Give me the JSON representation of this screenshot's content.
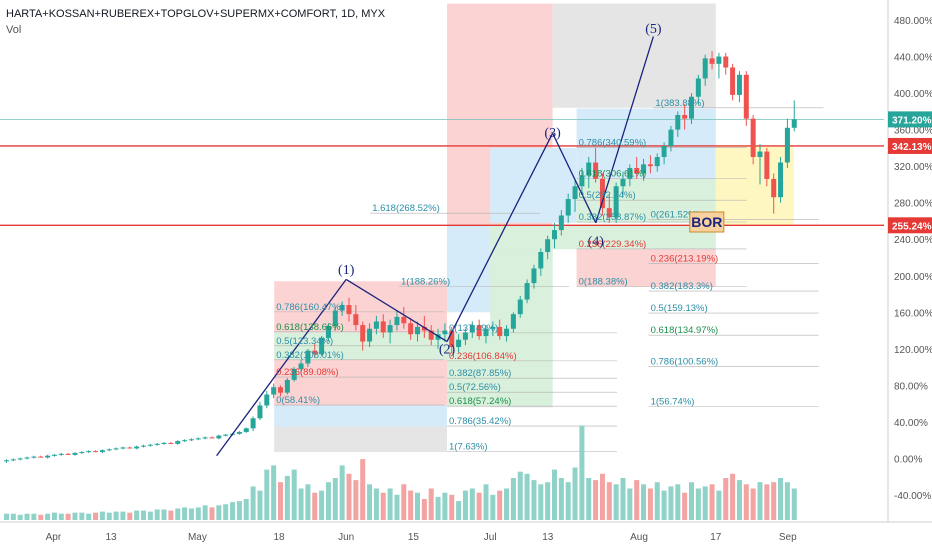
{
  "header": {
    "title": "HARTA+KOSSAN+RUBEREX+TOPGLOV+SUPERMX+COMFORT, 1D, MYX",
    "volume_label": "Vol"
  },
  "colors": {
    "up": "#26a69a",
    "down": "#ef5350",
    "vol_up": "#8fd2c8",
    "vol_down": "#f4a3a3",
    "fib": "#2b8ea6",
    "fib_red": "#e53935",
    "fib_green": "#1b8f4a",
    "wave": "#1a237e",
    "hline": "#e53935",
    "pink": "#fbd3d3",
    "blue": "#d6ebfa",
    "gray": "#e5e5e5",
    "green": "#d9f0dc",
    "yellow": "#fff7c2"
  },
  "chart_data": {
    "type": "candlestick",
    "title": "HARTA+KOSSAN+RUBEREX+TOPGLOV+SUPERMX+COMFORT, 1D, MYX",
    "yaxis": {
      "unit": "%",
      "ticks": [
        "480.00%",
        "440.00%",
        "400.00%",
        "360.00%",
        "320.00%",
        "280.00%",
        "240.00%",
        "200.00%",
        "160.00%",
        "120.00%",
        "80.00%",
        "40.00%",
        "0.00%",
        "-40.00%"
      ],
      "ylim": [
        -45,
        498
      ]
    },
    "xaxis": {
      "ticks": [
        "Apr",
        "13",
        "May",
        "18",
        "Jun",
        "15",
        "Jul",
        "13",
        "Aug",
        "17",
        "Sep"
      ]
    },
    "price_labels": [
      {
        "text": "371.20%",
        "value": 371.2,
        "kind": "current"
      },
      {
        "text": "342.13%",
        "value": 342.13,
        "kind": "line"
      },
      {
        "text": "255.24%",
        "value": 255.24,
        "kind": "line"
      }
    ],
    "horizontal_lines": [
      342.13,
      255.24
    ],
    "wave_labels": [
      {
        "text": "(1)",
        "x": "Jun 1",
        "y": 202
      },
      {
        "text": "(2)",
        "x": "Jun 22",
        "y": 115
      },
      {
        "text": "(3)",
        "x": "Jul 14",
        "y": 352
      },
      {
        "text": "(4)",
        "x": "Jul 23",
        "y": 233
      },
      {
        "text": "(5)",
        "x": "Aug 4",
        "y": 466
      }
    ],
    "fib_labels": [
      {
        "text": "1(383.88%)",
        "x": "Aug 4",
        "y": 383.88
      },
      {
        "text": "0.786(340.59%)",
        "x": "Jul 19",
        "y": 340.59
      },
      {
        "text": "0.618(306.61%)",
        "x": "Jul 19",
        "y": 306.61
      },
      {
        "text": "0.5(282.74%)",
        "x": "Jul 19",
        "y": 282.74
      },
      {
        "text": "0.382(258.87%)",
        "x": "Jul 19",
        "y": 258.87
      },
      {
        "text": "0.236(229.34%)",
        "x": "Jul 19",
        "y": 229.34
      },
      {
        "text": "0(188.38%)",
        "x": "Jul 19",
        "y": 188.38
      },
      {
        "text": "1.618(268.52%)",
        "x": "Jun 6",
        "y": 268.52
      },
      {
        "text": "1(188.26%)",
        "x": "Jun 12",
        "y": 188.26
      },
      {
        "text": "0.786(160.47%)",
        "x": "May 17",
        "y": 160.47
      },
      {
        "text": "0.618(138.66%)",
        "x": "May 17",
        "y": 138.66
      },
      {
        "text": "0.5(123.34%)",
        "x": "May 17",
        "y": 123.34
      },
      {
        "text": "0.382(108.01%)",
        "x": "May 17",
        "y": 108.01
      },
      {
        "text": "0.236(89.08%)",
        "x": "May 17",
        "y": 89.08
      },
      {
        "text": "0(58.41%)",
        "x": "May 17",
        "y": 58.41
      },
      {
        "text": "0.786(35.42%)",
        "x": "Jun 22",
        "y": 35.42
      },
      {
        "text": "1(7.63%)",
        "x": "Jun 22",
        "y": 7.63
      },
      {
        "text": "0(137.49%)",
        "x": "Jun 22",
        "y": 137.49
      },
      {
        "text": "0.236(106.84%)",
        "x": "Jun 22",
        "y": 106.84
      },
      {
        "text": "0.382(87.85%)",
        "x": "Jun 22",
        "y": 87.85
      },
      {
        "text": "0.5(72.56%)",
        "x": "Jun 22",
        "y": 72.56
      },
      {
        "text": "0.618(57.24%)",
        "x": "Jun 22",
        "y": 57.24
      },
      {
        "text": "0(261.52%)",
        "x": "Aug 3",
        "y": 261.52
      },
      {
        "text": "0.236(213.19%)",
        "x": "Aug 3",
        "y": 213.19
      },
      {
        "text": "0.382(183.3%)",
        "x": "Aug 3",
        "y": 183.3
      },
      {
        "text": "0.5(159.13%)",
        "x": "Aug 3",
        "y": 159.13
      },
      {
        "text": "0.618(134.97%)",
        "x": "Aug 3",
        "y": 134.97
      },
      {
        "text": "0.786(100.56%)",
        "x": "Aug 3",
        "y": 100.56
      },
      {
        "text": "1(56.74%)",
        "x": "Aug 3",
        "y": 56.74
      }
    ],
    "annotation": "BOR",
    "candles": [
      {
        "o": -3,
        "h": -1,
        "l": -5,
        "c": -2
      },
      {
        "o": -2,
        "h": 0,
        "l": -3,
        "c": -1
      },
      {
        "o": -1,
        "h": 1,
        "l": -2,
        "c": 0
      },
      {
        "o": 0,
        "h": 2,
        "l": -1,
        "c": 1
      },
      {
        "o": 1,
        "h": 3,
        "l": 0,
        "c": 2
      },
      {
        "o": 2,
        "h": 3,
        "l": 1,
        "c": 1
      },
      {
        "o": 1,
        "h": 4,
        "l": 0,
        "c": 3
      },
      {
        "o": 3,
        "h": 5,
        "l": 2,
        "c": 4
      },
      {
        "o": 4,
        "h": 6,
        "l": 3,
        "c": 5
      },
      {
        "o": 5,
        "h": 6,
        "l": 4,
        "c": 4
      },
      {
        "o": 4,
        "h": 7,
        "l": 3,
        "c": 6
      },
      {
        "o": 6,
        "h": 8,
        "l": 5,
        "c": 7
      },
      {
        "o": 7,
        "h": 9,
        "l": 6,
        "c": 8
      },
      {
        "o": 8,
        "h": 9,
        "l": 7,
        "c": 7
      },
      {
        "o": 7,
        "h": 10,
        "l": 6,
        "c": 9
      },
      {
        "o": 9,
        "h": 11,
        "l": 8,
        "c": 10
      },
      {
        "o": 10,
        "h": 12,
        "l": 9,
        "c": 11
      },
      {
        "o": 11,
        "h": 13,
        "l": 10,
        "c": 12
      },
      {
        "o": 12,
        "h": 13,
        "l": 11,
        "c": 11
      },
      {
        "o": 11,
        "h": 14,
        "l": 10,
        "c": 13
      },
      {
        "o": 13,
        "h": 15,
        "l": 12,
        "c": 14
      },
      {
        "o": 14,
        "h": 16,
        "l": 13,
        "c": 15
      },
      {
        "o": 15,
        "h": 17,
        "l": 14,
        "c": 16
      },
      {
        "o": 16,
        "h": 18,
        "l": 15,
        "c": 17
      },
      {
        "o": 17,
        "h": 18,
        "l": 16,
        "c": 16
      },
      {
        "o": 16,
        "h": 20,
        "l": 15,
        "c": 19
      },
      {
        "o": 19,
        "h": 21,
        "l": 18,
        "c": 20
      },
      {
        "o": 20,
        "h": 22,
        "l": 19,
        "c": 21
      },
      {
        "o": 21,
        "h": 23,
        "l": 20,
        "c": 22
      },
      {
        "o": 22,
        "h": 24,
        "l": 21,
        "c": 23
      },
      {
        "o": 23,
        "h": 24,
        "l": 22,
        "c": 22
      },
      {
        "o": 22,
        "h": 26,
        "l": 21,
        "c": 25
      },
      {
        "o": 25,
        "h": 27,
        "l": 24,
        "c": 26
      },
      {
        "o": 26,
        "h": 28,
        "l": 25,
        "c": 27
      },
      {
        "o": 27,
        "h": 30,
        "l": 26,
        "c": 29
      },
      {
        "o": 29,
        "h": 34,
        "l": 28,
        "c": 33
      },
      {
        "o": 33,
        "h": 46,
        "l": 30,
        "c": 44
      },
      {
        "o": 44,
        "h": 62,
        "l": 42,
        "c": 58
      },
      {
        "o": 58,
        "h": 74,
        "l": 55,
        "c": 70
      },
      {
        "o": 70,
        "h": 82,
        "l": 66,
        "c": 78
      },
      {
        "o": 78,
        "h": 80,
        "l": 68,
        "c": 72
      },
      {
        "o": 72,
        "h": 88,
        "l": 70,
        "c": 86
      },
      {
        "o": 86,
        "h": 100,
        "l": 84,
        "c": 98
      },
      {
        "o": 98,
        "h": 108,
        "l": 92,
        "c": 104
      },
      {
        "o": 104,
        "h": 120,
        "l": 100,
        "c": 118
      },
      {
        "o": 118,
        "h": 126,
        "l": 110,
        "c": 114
      },
      {
        "o": 114,
        "h": 134,
        "l": 112,
        "c": 132
      },
      {
        "o": 132,
        "h": 148,
        "l": 128,
        "c": 145
      },
      {
        "o": 145,
        "h": 166,
        "l": 140,
        "c": 162
      },
      {
        "o": 162,
        "h": 172,
        "l": 156,
        "c": 168
      },
      {
        "o": 168,
        "h": 176,
        "l": 150,
        "c": 158
      },
      {
        "o": 158,
        "h": 168,
        "l": 140,
        "c": 146
      },
      {
        "o": 146,
        "h": 150,
        "l": 118,
        "c": 128
      },
      {
        "o": 128,
        "h": 148,
        "l": 122,
        "c": 142
      },
      {
        "o": 142,
        "h": 156,
        "l": 136,
        "c": 150
      },
      {
        "o": 150,
        "h": 158,
        "l": 132,
        "c": 138
      },
      {
        "o": 138,
        "h": 152,
        "l": 126,
        "c": 146
      },
      {
        "o": 146,
        "h": 162,
        "l": 140,
        "c": 155
      },
      {
        "o": 155,
        "h": 166,
        "l": 142,
        "c": 148
      },
      {
        "o": 148,
        "h": 154,
        "l": 130,
        "c": 136
      },
      {
        "o": 136,
        "h": 150,
        "l": 128,
        "c": 144
      },
      {
        "o": 144,
        "h": 156,
        "l": 132,
        "c": 140
      },
      {
        "o": 140,
        "h": 146,
        "l": 124,
        "c": 130
      },
      {
        "o": 130,
        "h": 142,
        "l": 120,
        "c": 136
      },
      {
        "o": 136,
        "h": 148,
        "l": 128,
        "c": 140
      },
      {
        "o": 140,
        "h": 144,
        "l": 116,
        "c": 122
      },
      {
        "o": 122,
        "h": 136,
        "l": 116,
        "c": 130
      },
      {
        "o": 130,
        "h": 142,
        "l": 124,
        "c": 138
      },
      {
        "o": 138,
        "h": 150,
        "l": 132,
        "c": 146
      },
      {
        "o": 146,
        "h": 152,
        "l": 130,
        "c": 134
      },
      {
        "o": 134,
        "h": 146,
        "l": 126,
        "c": 142
      },
      {
        "o": 142,
        "h": 150,
        "l": 134,
        "c": 144
      },
      {
        "o": 144,
        "h": 152,
        "l": 130,
        "c": 134
      },
      {
        "o": 134,
        "h": 146,
        "l": 128,
        "c": 142
      },
      {
        "o": 142,
        "h": 160,
        "l": 138,
        "c": 158
      },
      {
        "o": 158,
        "h": 178,
        "l": 154,
        "c": 174
      },
      {
        "o": 174,
        "h": 196,
        "l": 170,
        "c": 192
      },
      {
        "o": 192,
        "h": 212,
        "l": 186,
        "c": 208
      },
      {
        "o": 208,
        "h": 230,
        "l": 200,
        "c": 226
      },
      {
        "o": 226,
        "h": 244,
        "l": 218,
        "c": 240
      },
      {
        "o": 240,
        "h": 258,
        "l": 230,
        "c": 250
      },
      {
        "o": 250,
        "h": 272,
        "l": 244,
        "c": 266
      },
      {
        "o": 266,
        "h": 290,
        "l": 258,
        "c": 284
      },
      {
        "o": 284,
        "h": 304,
        "l": 270,
        "c": 298
      },
      {
        "o": 298,
        "h": 318,
        "l": 290,
        "c": 310
      },
      {
        "o": 310,
        "h": 330,
        "l": 296,
        "c": 324
      },
      {
        "o": 324,
        "h": 340,
        "l": 302,
        "c": 306
      },
      {
        "o": 306,
        "h": 312,
        "l": 266,
        "c": 274
      },
      {
        "o": 274,
        "h": 288,
        "l": 258,
        "c": 264
      },
      {
        "o": 264,
        "h": 302,
        "l": 258,
        "c": 298
      },
      {
        "o": 298,
        "h": 314,
        "l": 288,
        "c": 306
      },
      {
        "o": 306,
        "h": 322,
        "l": 298,
        "c": 318
      },
      {
        "o": 318,
        "h": 330,
        "l": 306,
        "c": 312
      },
      {
        "o": 312,
        "h": 328,
        "l": 304,
        "c": 322
      },
      {
        "o": 322,
        "h": 332,
        "l": 312,
        "c": 320
      },
      {
        "o": 320,
        "h": 334,
        "l": 314,
        "c": 330
      },
      {
        "o": 330,
        "h": 346,
        "l": 322,
        "c": 342
      },
      {
        "o": 342,
        "h": 364,
        "l": 336,
        "c": 360
      },
      {
        "o": 360,
        "h": 380,
        "l": 352,
        "c": 376
      },
      {
        "o": 376,
        "h": 388,
        "l": 360,
        "c": 372
      },
      {
        "o": 372,
        "h": 400,
        "l": 366,
        "c": 396
      },
      {
        "o": 396,
        "h": 420,
        "l": 388,
        "c": 416
      },
      {
        "o": 416,
        "h": 442,
        "l": 408,
        "c": 438
      },
      {
        "o": 438,
        "h": 446,
        "l": 426,
        "c": 432
      },
      {
        "o": 432,
        "h": 444,
        "l": 416,
        "c": 440
      },
      {
        "o": 440,
        "h": 444,
        "l": 420,
        "c": 428
      },
      {
        "o": 428,
        "h": 432,
        "l": 392,
        "c": 398
      },
      {
        "o": 398,
        "h": 424,
        "l": 390,
        "c": 420
      },
      {
        "o": 420,
        "h": 424,
        "l": 364,
        "c": 372
      },
      {
        "o": 372,
        "h": 376,
        "l": 322,
        "c": 330
      },
      {
        "o": 330,
        "h": 344,
        "l": 300,
        "c": 336
      },
      {
        "o": 336,
        "h": 340,
        "l": 298,
        "c": 306
      },
      {
        "o": 306,
        "h": 312,
        "l": 268,
        "c": 286
      },
      {
        "o": 286,
        "h": 330,
        "l": 280,
        "c": 324
      },
      {
        "o": 324,
        "h": 372,
        "l": 318,
        "c": 362
      },
      {
        "o": 362,
        "h": 392,
        "l": 358,
        "c": 371.2
      }
    ],
    "volume": [
      6,
      6,
      5,
      6,
      6,
      5,
      6,
      7,
      6,
      6,
      7,
      7,
      6,
      7,
      8,
      7,
      8,
      8,
      7,
      9,
      9,
      8,
      10,
      10,
      9,
      11,
      12,
      11,
      12,
      14,
      12,
      14,
      15,
      17,
      18,
      20,
      32,
      28,
      48,
      52,
      36,
      42,
      48,
      30,
      34,
      26,
      28,
      36,
      40,
      52,
      44,
      38,
      58,
      34,
      30,
      26,
      30,
      24,
      34,
      28,
      26,
      20,
      30,
      22,
      26,
      24,
      18,
      28,
      30,
      26,
      34,
      24,
      28,
      30,
      40,
      46,
      44,
      38,
      34,
      36,
      48,
      40,
      36,
      50,
      90,
      40,
      38,
      44,
      36,
      34,
      40,
      30,
      38,
      34,
      30,
      36,
      28,
      32,
      34,
      26,
      36,
      30,
      32,
      34,
      28,
      40,
      44,
      38,
      34,
      30,
      36,
      34,
      36,
      40,
      36,
      30
    ],
    "trend_points": [
      {
        "x": "May 5",
        "y": 3
      },
      {
        "x": "Jun 1",
        "y": 196
      },
      {
        "x": "Jun 22",
        "y": 128
      },
      {
        "x": "Jul 14",
        "y": 356
      },
      {
        "x": "Jul 23",
        "y": 258
      },
      {
        "x": "Aug 4",
        "y": 462
      }
    ]
  }
}
